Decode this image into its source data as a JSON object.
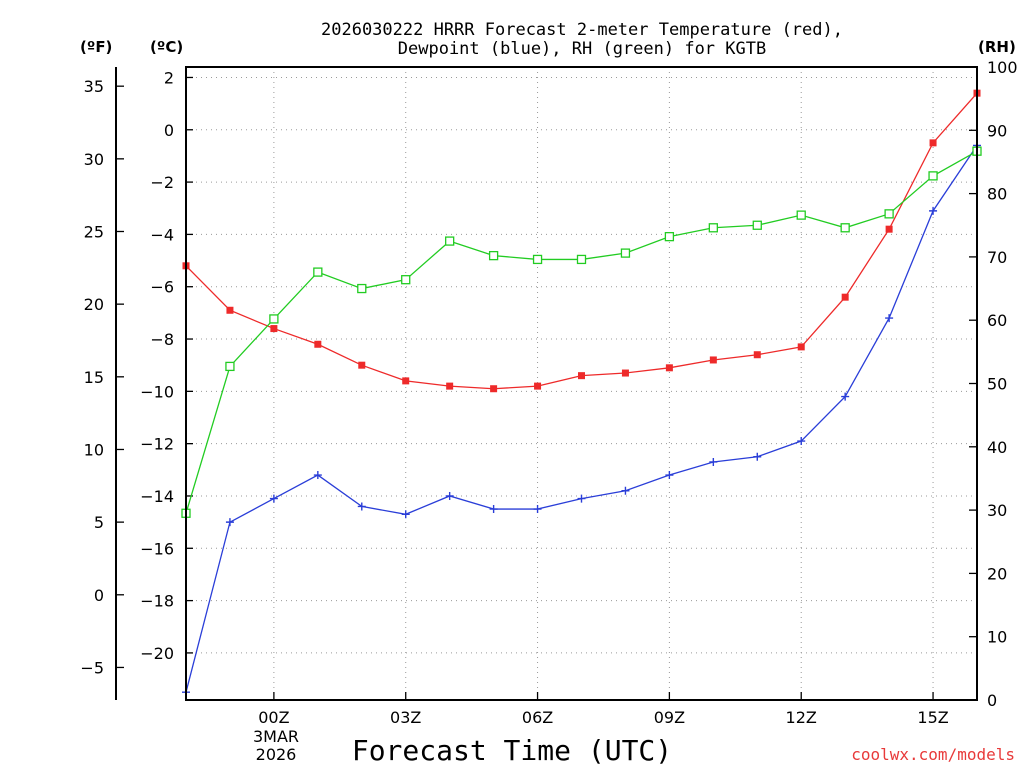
{
  "chart_data": {
    "type": "line",
    "title_line1": "2026030222 HRRR Forecast 2-meter Temperature (red),",
    "title_line2": "Dewpoint (blue), RH (green) for KGTB",
    "xlabel": "Forecast Time (UTC)",
    "watermark": "coolwx.com/models",
    "unit_f": "(ºF)",
    "unit_c": "(ºC)",
    "unit_rh": "(RH)",
    "date_line1": "3MAR",
    "date_line2": "2026",
    "x": [
      -2,
      -1,
      0,
      1,
      2,
      3,
      4,
      5,
      6,
      7,
      8,
      9,
      10,
      11,
      12,
      13,
      14,
      15,
      16
    ],
    "x_range": [
      -2,
      16
    ],
    "x_ticks": [
      {
        "value": 0,
        "label": "00Z"
      },
      {
        "value": 3,
        "label": "03Z"
      },
      {
        "value": 6,
        "label": "06Z"
      },
      {
        "value": 9,
        "label": "09Z"
      },
      {
        "value": 12,
        "label": "12Z"
      },
      {
        "value": 15,
        "label": "15Z"
      }
    ],
    "c_range": [
      -21.8,
      2.4
    ],
    "c_ticks": [
      2,
      0,
      -2,
      -4,
      -6,
      -8,
      -10,
      -12,
      -14,
      -16,
      -18,
      -20
    ],
    "f_ticks": [
      35,
      30,
      25,
      20,
      15,
      10,
      5,
      0,
      -5
    ],
    "rh_range": [
      0,
      100
    ],
    "rh_ticks": [
      100,
      90,
      80,
      70,
      60,
      50,
      40,
      30,
      20,
      10,
      0
    ],
    "series": [
      {
        "name": "Temperature",
        "axis": "C",
        "color": "#ee2a2a",
        "marker": "filled-square",
        "values": [
          -5.2,
          -6.9,
          -7.6,
          -8.2,
          -9.0,
          -9.6,
          -9.8,
          -9.9,
          -9.8,
          -9.4,
          -9.3,
          -9.1,
          -8.8,
          -8.6,
          -8.3,
          -6.4,
          -3.8,
          -0.5,
          1.4
        ]
      },
      {
        "name": "Dewpoint",
        "axis": "C",
        "color": "#2a3ed8",
        "marker": "plus",
        "values": [
          -21.5,
          -15.0,
          -14.1,
          -13.2,
          -14.4,
          -14.7,
          -14.0,
          -14.5,
          -14.5,
          -14.1,
          -13.8,
          -13.2,
          -12.7,
          -12.5,
          -11.9,
          -10.2,
          -7.2,
          -3.1,
          -0.6
        ]
      },
      {
        "name": "RH",
        "axis": "RH",
        "color": "#22cc22",
        "marker": "open-square",
        "values": [
          29.5,
          52.7,
          60.2,
          67.6,
          65.0,
          66.4,
          72.5,
          70.2,
          69.6,
          69.6,
          70.6,
          73.2,
          74.6,
          75.0,
          76.6,
          74.6,
          76.8,
          82.8,
          86.7
        ]
      }
    ]
  }
}
